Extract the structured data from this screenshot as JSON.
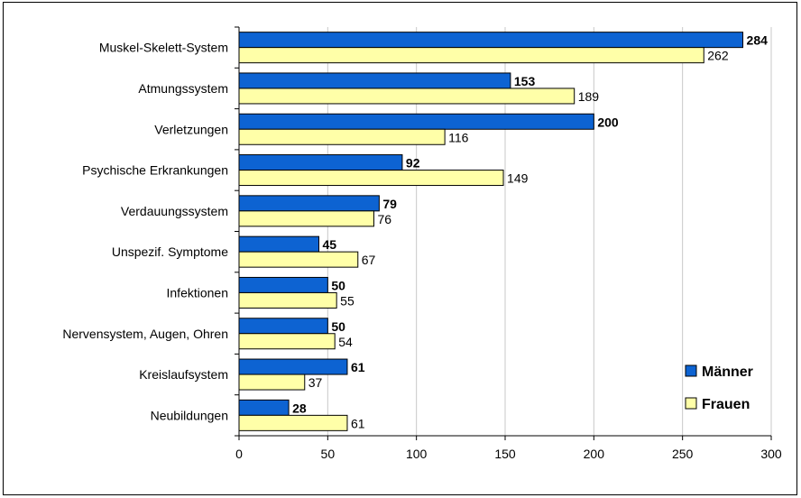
{
  "chart_data": {
    "type": "bar",
    "orientation": "horizontal",
    "categories": [
      "Muskel-Skelett-System",
      "Atmungssystem",
      "Verletzungen",
      "Psychische Erkrankungen",
      "Verdauungssystem",
      "Unspezif. Symptome",
      "Infektionen",
      "Nervensystem, Augen, Ohren",
      "Kreislaufsystem",
      "Neubildungen"
    ],
    "series": [
      {
        "name": "Männer",
        "color": "#0d63d2",
        "values": [
          284,
          153,
          200,
          92,
          79,
          45,
          50,
          50,
          61,
          28
        ]
      },
      {
        "name": "Frauen",
        "color": "#ffffa8",
        "values": [
          262,
          189,
          116,
          149,
          76,
          67,
          55,
          54,
          37,
          61
        ]
      }
    ],
    "xlim": [
      0,
      300
    ],
    "xticks": [
      "0",
      "50",
      "100",
      "150",
      "200",
      "250",
      "300"
    ],
    "grid": true,
    "legend_position": "bottom-right",
    "title": "",
    "xlabel": "",
    "ylabel": ""
  }
}
